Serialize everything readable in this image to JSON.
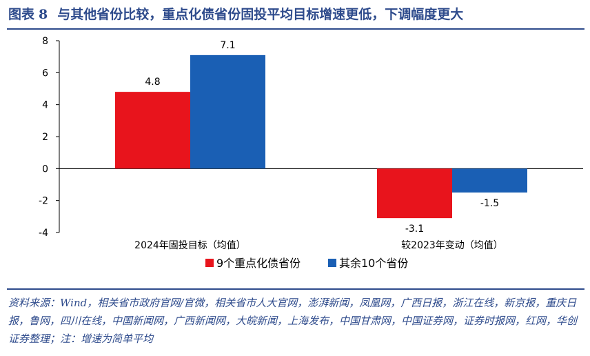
{
  "figure": {
    "label": "图表",
    "number": "8",
    "title": "与其他省份比较，重点化债省份固投平均目标增速更低，下调幅度更大"
  },
  "source_note": "资料来源：Wind，相关省市政府官网/官微，相关省市人大官网，澎湃新闻，凤凰网，广西日报，浙江在线，新京报，重庆日报，鲁网，四川在线，中国新闻网，广西新闻网，大皖新闻，上海发布，中国甘肃网，中国证券网，证券时报网，红网，华创证券整理；注：增速为简单平均",
  "colors": {
    "series1": "#e8141c",
    "series2": "#1a5fb4",
    "accent": "#2e4b8c"
  },
  "chart_data": {
    "type": "bar",
    "categories": [
      "2024年固投目标（均值）",
      "较2023年变动（均值）"
    ],
    "series": [
      {
        "name": "9个重点化债省份",
        "values": [
          4.8,
          -3.1
        ],
        "labels": [
          "4.8",
          "-3.1"
        ]
      },
      {
        "name": "其余10个省份",
        "values": [
          7.1,
          -1.5
        ],
        "labels": [
          "7.1",
          "-1.5"
        ]
      }
    ],
    "yticks": [
      "8",
      "6",
      "4",
      "2",
      "0",
      "-2",
      "-4"
    ],
    "ylim": [
      -4,
      8
    ],
    "legend_position": "bottom-center",
    "grid": false
  }
}
